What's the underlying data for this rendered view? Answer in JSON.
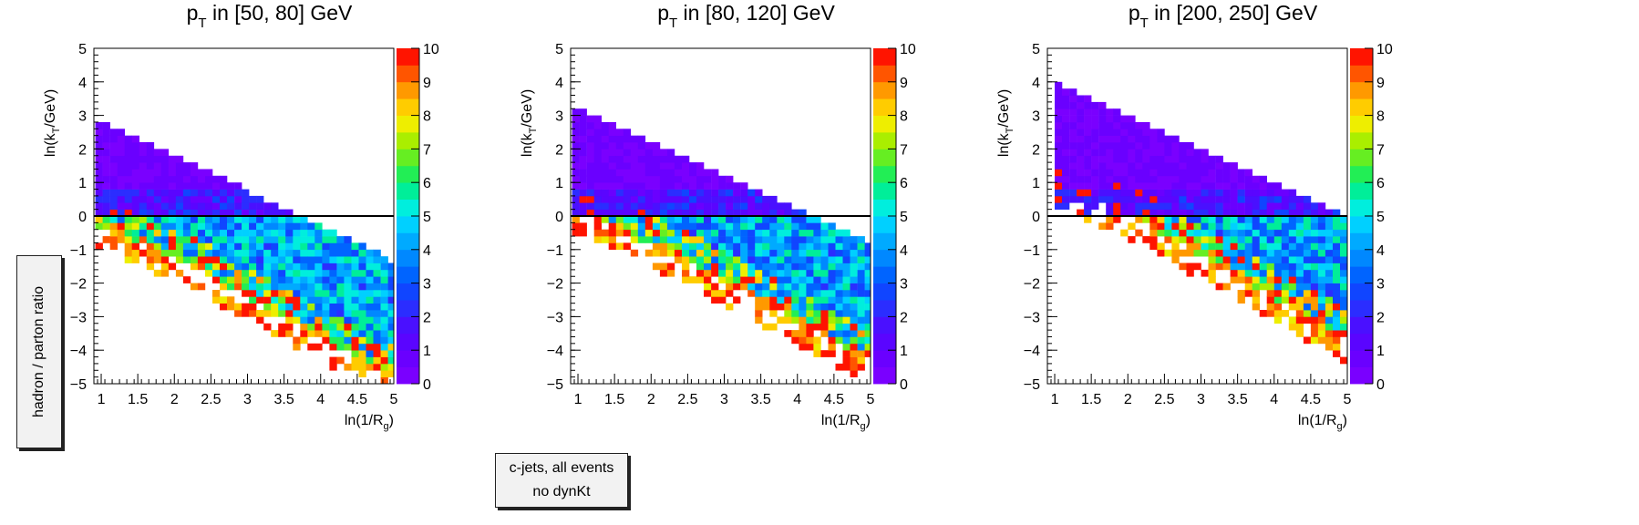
{
  "side_label": "hadron / parton ratio",
  "info_box": {
    "line1": "c-jets, all events",
    "line2": "no dynKt"
  },
  "chart_data": [
    {
      "type": "heatmap",
      "title": "p_T in [50, 80] GeV",
      "title_parts": {
        "main": "p",
        "sub": "T",
        "rest": " in [50, 80] GeV"
      },
      "xlabel": "ln(1/R_g)",
      "ylabel": "ln(k_T/GeV)",
      "xlim": [
        0.9,
        5.0
      ],
      "ylim": [
        -5,
        5
      ],
      "zlim": [
        0,
        10
      ],
      "x_ticks": [
        "1",
        "1.5",
        "2",
        "2.5",
        "3",
        "3.5",
        "4",
        "4.5",
        "5"
      ],
      "y_ticks": [
        "−5",
        "−4",
        "−3",
        "−2",
        "−1",
        "0",
        "1",
        "2",
        "3",
        "4",
        "5"
      ],
      "z_ticks": [
        "0",
        "1",
        "2",
        "3",
        "4",
        "5",
        "6",
        "7",
        "8",
        "9",
        "10"
      ],
      "reference_line_y": 0,
      "band": {
        "x_start": 0.92,
        "x_end": 5.0,
        "top_start": 2.9,
        "top_slope": -1.05,
        "bottom_start": 0.6,
        "bottom_slope": -0.95,
        "seed": 11
      }
    },
    {
      "type": "heatmap",
      "title": "p_T in [80, 120] GeV",
      "title_parts": {
        "main": "p",
        "sub": "T",
        "rest": " in [80, 120] GeV"
      },
      "xlabel": "ln(1/R_g)",
      "ylabel": "ln(k_T/GeV)",
      "xlim": [
        0.9,
        5.0
      ],
      "ylim": [
        -5,
        5
      ],
      "zlim": [
        0,
        10
      ],
      "x_ticks": [
        "1",
        "1.5",
        "2",
        "2.5",
        "3",
        "3.5",
        "4",
        "4.5",
        "5"
      ],
      "y_ticks": [
        "−5",
        "−4",
        "−3",
        "−2",
        "−1",
        "0",
        "1",
        "2",
        "3",
        "4",
        "5"
      ],
      "z_ticks": [
        "0",
        "1",
        "2",
        "3",
        "4",
        "5",
        "6",
        "7",
        "8",
        "9",
        "10"
      ],
      "reference_line_y": 0,
      "band": {
        "x_start": 0.92,
        "x_end": 5.0,
        "top_start": 3.25,
        "top_slope": -1.0,
        "bottom_start": 1.0,
        "bottom_slope": -0.93,
        "seed": 23
      }
    },
    {
      "type": "heatmap",
      "title": "p_T in [200, 250] GeV",
      "title_parts": {
        "main": "p",
        "sub": "T",
        "rest": " in [200, 250] GeV"
      },
      "xlabel": "ln(1/R_g)",
      "ylabel": "ln(k_T/GeV)",
      "xlim": [
        0.9,
        5.0
      ],
      "ylim": [
        -5,
        5
      ],
      "zlim": [
        0,
        10
      ],
      "x_ticks": [
        "1",
        "1.5",
        "2",
        "2.5",
        "3",
        "3.5",
        "4",
        "4.5",
        "5"
      ],
      "y_ticks": [
        "−5",
        "−4",
        "−3",
        "−2",
        "−1",
        "0",
        "1",
        "2",
        "3",
        "4",
        "5"
      ],
      "z_ticks": [
        "0",
        "1",
        "2",
        "3",
        "4",
        "5",
        "6",
        "7",
        "8",
        "9",
        "10"
      ],
      "reference_line_y": 0,
      "band": {
        "x_start": 1.0,
        "x_end": 5.0,
        "top_start": 4.0,
        "top_slope": -1.0,
        "bottom_start": 1.85,
        "bottom_slope": -1.0,
        "seed": 37
      }
    }
  ]
}
